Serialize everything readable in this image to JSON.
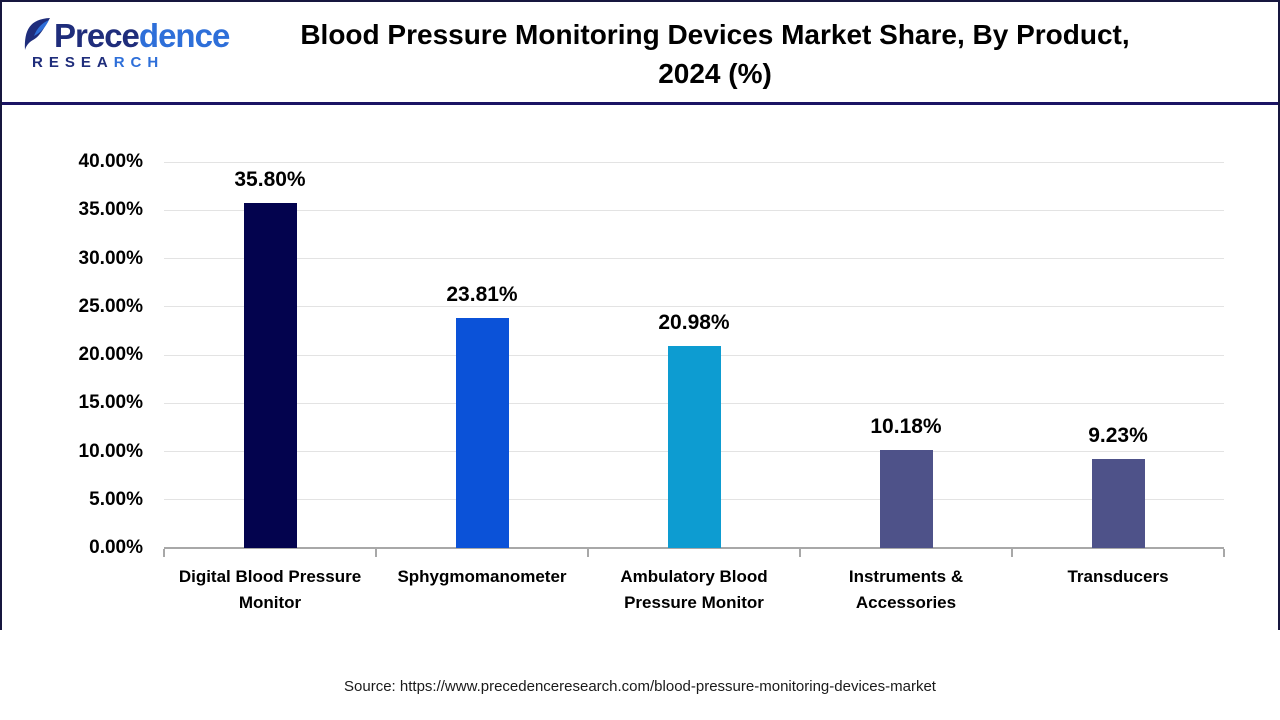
{
  "logo": {
    "brand_part1": "Prece",
    "brand_part2": "dence",
    "research_part1": "RESEA",
    "research_part2": "RCH"
  },
  "header": {
    "title_lines": [
      "Blood Pressure Monitoring Devices Market Share, By Product,",
      "2024 (%)"
    ]
  },
  "chart_data": {
    "type": "bar",
    "title": "Blood Pressure Monitoring Devices Market Share, By Product, 2024 (%)",
    "categories": [
      "Digital Blood Pressure Monitor",
      "Sphygmomanometer",
      "Ambulatory Blood Pressure Monitor",
      "Instruments & Accessories",
      "Transducers"
    ],
    "values": [
      35.8,
      23.81,
      20.98,
      10.18,
      9.23
    ],
    "value_labels": [
      "35.80%",
      "23.81%",
      "20.98%",
      "10.18%",
      "9.23%"
    ],
    "bar_colors": [
      "#03034e",
      "#0b52d8",
      "#0d9cd1",
      "#4e5289",
      "#4e5289"
    ],
    "xlabel": "",
    "ylabel": "",
    "ylim": [
      0,
      40
    ],
    "ytick_step": 5,
    "ytick_labels": [
      "0.00%",
      "5.00%",
      "10.00%",
      "15.00%",
      "20.00%",
      "25.00%",
      "30.00%",
      "35.00%",
      "40.00%"
    ],
    "grid": "horizontal",
    "legend": "none",
    "colors": {
      "gridline": "#e3e3e3",
      "axis": "#a8a8a8"
    }
  },
  "footer": {
    "source": "Source: https://www.precedenceresearch.com/blood-pressure-monitoring-devices-market"
  }
}
